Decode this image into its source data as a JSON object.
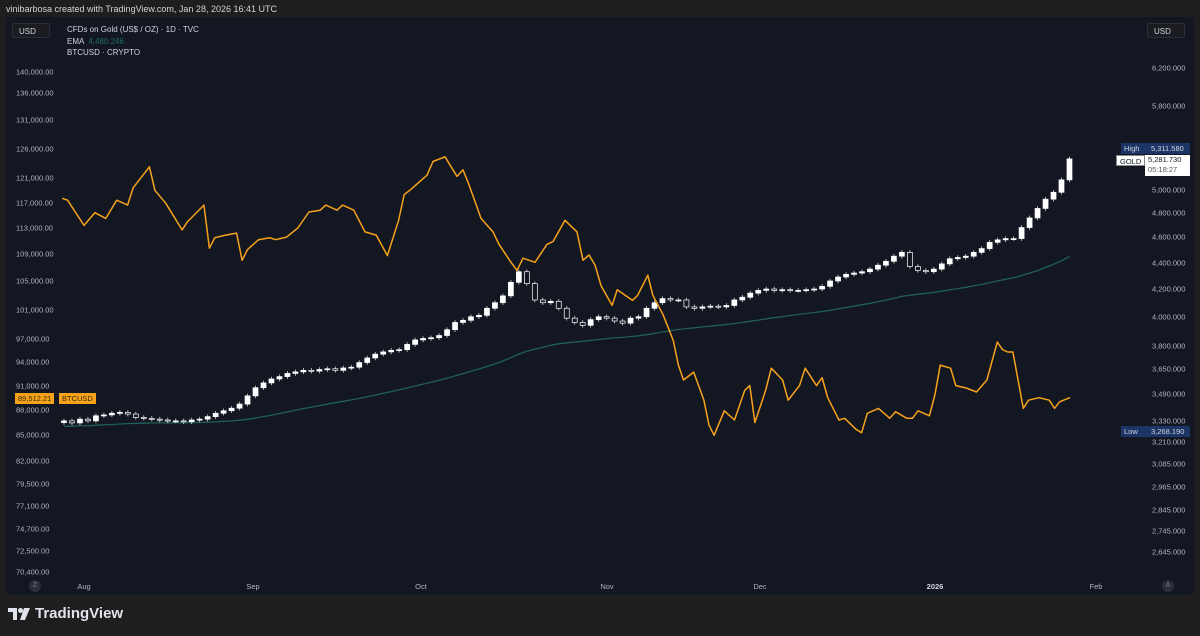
{
  "header": {
    "attribution": "vinibarbosa created with TradingView.com, Jan 28, 2026 16:41 UTC"
  },
  "scale_buttons": {
    "left": "USD",
    "right": "USD"
  },
  "legend": {
    "main_series": "CFDs on Gold (US$ / OZ) · 1D · TVC",
    "ema_label": "EMA",
    "ema_value": "4,480.246",
    "compare_series": "BTCUSD · CRYPTO"
  },
  "colors": {
    "background": "#131722",
    "btc_line": "#f7a21b",
    "ema_line": "#1f5f5a",
    "candle": "#ffffff",
    "high_low_tag": "#1c3566"
  },
  "footer": {
    "brand": "TradingView",
    "logo_icon": "tradingview-logo"
  },
  "bottom_buttons": {
    "left": "Z",
    "right": "A"
  },
  "chart_data": {
    "type": "candlestick+line",
    "interval": "1D",
    "gold": {
      "name": "GOLD",
      "first_date": "2025-07-25",
      "closes": [
        3330,
        3318,
        3340,
        3330,
        3360,
        3365,
        3375,
        3380,
        3370,
        3350,
        3345,
        3340,
        3335,
        3330,
        3330,
        3325,
        3335,
        3340,
        3355,
        3375,
        3390,
        3405,
        3430,
        3480,
        3530,
        3560,
        3585,
        3600,
        3620,
        3630,
        3640,
        3635,
        3645,
        3650,
        3640,
        3655,
        3660,
        3690,
        3720,
        3745,
        3760,
        3770,
        3775,
        3810,
        3840,
        3850,
        3855,
        3870,
        3910,
        3960,
        3975,
        4000,
        4010,
        4060,
        4100,
        4150,
        4250,
        4330,
        4240,
        4120,
        4100,
        4110,
        4060,
        3990,
        3960,
        3940,
        3980,
        4000,
        3990,
        3970,
        3955,
        3990,
        4000,
        4060,
        4100,
        4130,
        4120,
        4120,
        4070,
        4060,
        4070,
        4075,
        4070,
        4080,
        4120,
        4140,
        4170,
        4190,
        4200,
        4190,
        4195,
        4190,
        4190,
        4195,
        4200,
        4220,
        4260,
        4290,
        4310,
        4320,
        4330,
        4350,
        4380,
        4410,
        4450,
        4480,
        4370,
        4340,
        4330,
        4350,
        4390,
        4430,
        4440,
        4450,
        4480,
        4510,
        4560,
        4580,
        4590,
        4590,
        4680,
        4760,
        4840,
        4920,
        4980,
        5090,
        5281.73
      ],
      "last_price": "5,281.730",
      "countdown": "05:18:27",
      "high": {
        "label": "High",
        "value": "5,311.580"
      },
      "low": {
        "label": "Low",
        "value": "3,268.190"
      }
    },
    "btc": {
      "name": "BTCUSD",
      "last_price": "89,512.21",
      "points": [
        [
          "2025-07-28",
          117700
        ],
        [
          "2025-07-29",
          117400
        ],
        [
          "2025-08-01",
          113400
        ],
        [
          "2025-08-03",
          115400
        ],
        [
          "2025-08-05",
          114500
        ],
        [
          "2025-08-07",
          117400
        ],
        [
          "2025-08-09",
          116600
        ],
        [
          "2025-08-10",
          119400
        ],
        [
          "2025-08-13",
          122900
        ],
        [
          "2025-08-14",
          119000
        ],
        [
          "2025-08-16",
          116900
        ],
        [
          "2025-08-19",
          112700
        ],
        [
          "2025-08-20",
          114000
        ],
        [
          "2025-08-23",
          116600
        ],
        [
          "2025-08-24",
          109900
        ],
        [
          "2025-08-25",
          111500
        ],
        [
          "2025-08-27",
          111900
        ],
        [
          "2025-08-29",
          112200
        ],
        [
          "2025-08-30",
          108100
        ],
        [
          "2025-08-31",
          109700
        ],
        [
          "2025-09-02",
          111200
        ],
        [
          "2025-09-04",
          111500
        ],
        [
          "2025-09-05",
          111200
        ],
        [
          "2025-09-07",
          111600
        ],
        [
          "2025-09-09",
          113000
        ],
        [
          "2025-09-11",
          115500
        ],
        [
          "2025-09-13",
          115800
        ],
        [
          "2025-09-14",
          116600
        ],
        [
          "2025-09-16",
          115800
        ],
        [
          "2025-09-17",
          116600
        ],
        [
          "2025-09-19",
          115800
        ],
        [
          "2025-09-21",
          112400
        ],
        [
          "2025-09-23",
          111900
        ],
        [
          "2025-09-25",
          108800
        ],
        [
          "2025-09-27",
          114200
        ],
        [
          "2025-09-28",
          118300
        ],
        [
          "2025-09-29",
          119000
        ],
        [
          "2025-10-02",
          121500
        ],
        [
          "2025-10-03",
          123800
        ],
        [
          "2025-10-05",
          124600
        ],
        [
          "2025-10-07",
          121300
        ],
        [
          "2025-10-08",
          122400
        ],
        [
          "2025-10-09",
          119900
        ],
        [
          "2025-10-11",
          114500
        ],
        [
          "2025-10-13",
          112400
        ],
        [
          "2025-10-14",
          110500
        ],
        [
          "2025-10-16",
          107800
        ],
        [
          "2025-10-17",
          106600
        ],
        [
          "2025-10-18",
          108400
        ],
        [
          "2025-10-20",
          107800
        ],
        [
          "2025-10-22",
          110500
        ],
        [
          "2025-10-23",
          110900
        ],
        [
          "2025-10-25",
          114200
        ],
        [
          "2025-10-27",
          112400
        ],
        [
          "2025-10-28",
          108100
        ],
        [
          "2025-10-29",
          108900
        ],
        [
          "2025-10-30",
          107400
        ],
        [
          "2025-10-31",
          104400
        ],
        [
          "2025-11-02",
          101600
        ],
        [
          "2025-11-03",
          103800
        ],
        [
          "2025-11-06",
          102300
        ],
        [
          "2025-11-07",
          103000
        ],
        [
          "2025-11-09",
          105900
        ],
        [
          "2025-11-10",
          103000
        ],
        [
          "2025-11-12",
          100300
        ],
        [
          "2025-11-14",
          96800
        ],
        [
          "2025-11-15",
          93600
        ],
        [
          "2025-11-16",
          91700
        ],
        [
          "2025-11-18",
          92700
        ],
        [
          "2025-11-20",
          89200
        ],
        [
          "2025-11-21",
          86200
        ],
        [
          "2025-11-22",
          85000
        ],
        [
          "2025-11-24",
          87900
        ],
        [
          "2025-11-26",
          86800
        ],
        [
          "2025-11-28",
          90400
        ],
        [
          "2025-11-29",
          91000
        ],
        [
          "2025-11-30",
          86500
        ],
        [
          "2025-12-02",
          90400
        ],
        [
          "2025-12-03",
          93200
        ],
        [
          "2025-12-05",
          91700
        ],
        [
          "2025-12-06",
          89200
        ],
        [
          "2025-12-08",
          91000
        ],
        [
          "2025-12-09",
          93200
        ],
        [
          "2025-12-11",
          91000
        ],
        [
          "2025-12-12",
          92000
        ],
        [
          "2025-12-13",
          89500
        ],
        [
          "2025-12-15",
          86800
        ],
        [
          "2025-12-16",
          87000
        ],
        [
          "2025-12-18",
          85700
        ],
        [
          "2025-12-19",
          85300
        ],
        [
          "2025-12-20",
          87600
        ],
        [
          "2025-12-22",
          88200
        ],
        [
          "2025-12-24",
          87000
        ],
        [
          "2025-12-25",
          87800
        ],
        [
          "2025-12-27",
          87000
        ],
        [
          "2025-12-28",
          87000
        ],
        [
          "2025-12-29",
          87900
        ],
        [
          "2025-12-31",
          87300
        ],
        [
          "2026-01-01",
          89900
        ],
        [
          "2026-01-02",
          93600
        ],
        [
          "2026-01-04",
          93200
        ],
        [
          "2026-01-05",
          91000
        ],
        [
          "2026-01-07",
          90700
        ],
        [
          "2026-01-09",
          90200
        ],
        [
          "2026-01-11",
          91700
        ],
        [
          "2026-01-13",
          96600
        ],
        [
          "2026-01-14",
          95600
        ],
        [
          "2026-01-15",
          95300
        ],
        [
          "2026-01-16",
          95300
        ],
        [
          "2026-01-18",
          88200
        ],
        [
          "2026-01-19",
          89200
        ],
        [
          "2026-01-21",
          89500
        ],
        [
          "2026-01-23",
          89200
        ],
        [
          "2026-01-24",
          88200
        ],
        [
          "2026-01-25",
          89000
        ],
        [
          "2026-01-27",
          89512.21
        ]
      ]
    },
    "ema": {
      "name": "EMA",
      "last_value": 4480.246
    },
    "left_axis": {
      "scale": "log",
      "ticks": [
        "140,000.00",
        "136,000.00",
        "131,000.00",
        "126,000.00",
        "121,000.00",
        "117,000.00",
        "113,000.00",
        "109,000.00",
        "105,000.00",
        "101,000.00",
        "97,000.00",
        "94,000.00",
        "91,000.00",
        "88,000.00",
        "85,000.00",
        "82,000.00",
        "79,500.00",
        "77,100.00",
        "74,700.00",
        "72,500.00",
        "70,400.00"
      ]
    },
    "right_axis": {
      "scale": "log",
      "ticks": [
        "6,200.000",
        "5,800.000",
        "5,000.000",
        "4,800.000",
        "4,600.000",
        "4,400.000",
        "4,200.000",
        "4,000.000",
        "3,800.000",
        "3,650.000",
        "3,490.000",
        "3,330.000",
        "3,210.000",
        "3,085.000",
        "2,965.000",
        "2,845.000",
        "2,745.000",
        "2,645.000"
      ]
    },
    "x_axis": {
      "ticks": [
        {
          "label": "Aug",
          "date": "2025-08-01"
        },
        {
          "label": "Sep",
          "date": "2025-09-01"
        },
        {
          "label": "Oct",
          "date": "2025-10-01"
        },
        {
          "label": "Nov",
          "date": "2025-11-01"
        },
        {
          "label": "Dec",
          "date": "2025-12-01"
        },
        {
          "label": "2026",
          "date": "2026-01-01",
          "bold": true
        },
        {
          "label": "Feb",
          "date": "2026-02-01"
        }
      ]
    },
    "grid": false
  }
}
